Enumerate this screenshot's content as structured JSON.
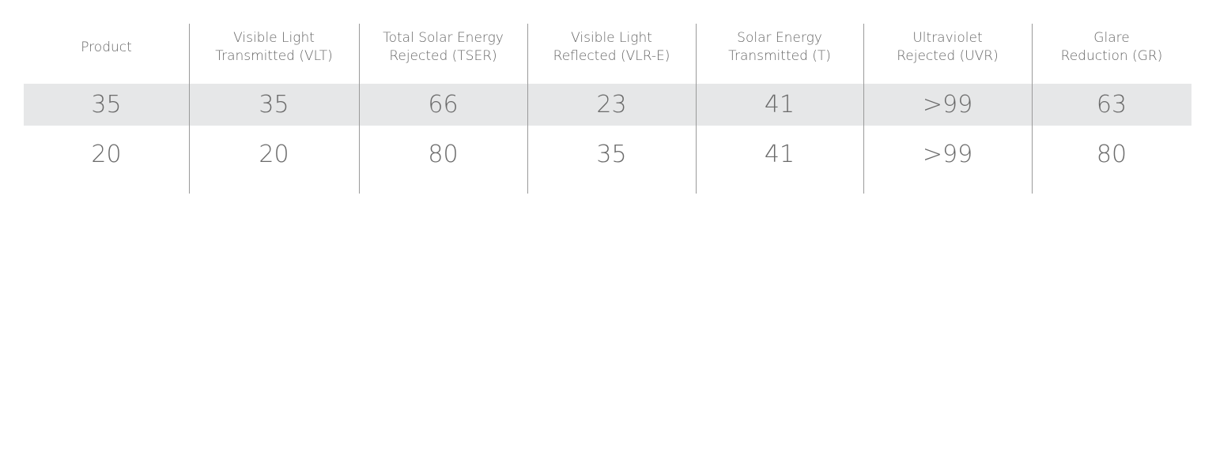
{
  "table": {
    "headers": [
      [
        "Product"
      ],
      [
        "Visible Light",
        "Transmitted (VLT)"
      ],
      [
        "Total Solar Energy",
        "Rejected (TSER)"
      ],
      [
        "Visible Light",
        "Reflected (VLR-E)"
      ],
      [
        "Solar Energy",
        "Transmitted (T)"
      ],
      [
        "Ultraviolet",
        "Rejected (UVR)"
      ],
      [
        "Glare",
        "Reduction (GR)"
      ]
    ],
    "rows": [
      [
        35,
        35,
        66,
        23,
        41,
        ">99",
        63
      ],
      [
        20,
        20,
        80,
        35,
        41,
        ">99",
        80
      ]
    ]
  }
}
